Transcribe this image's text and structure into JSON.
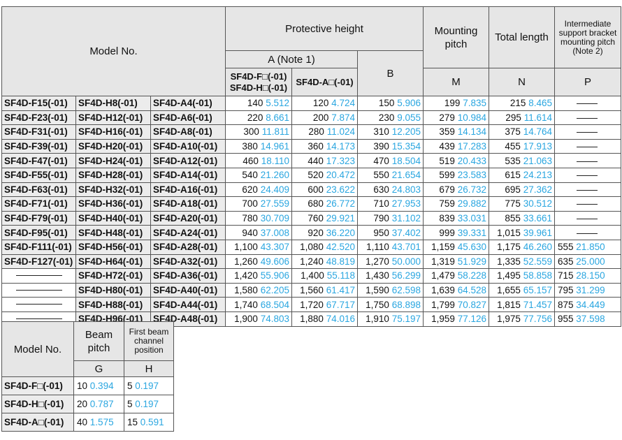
{
  "main_table": {
    "headers": {
      "model_no": "Model No.",
      "protective_height": "Protective height",
      "a_note": "A (Note 1)",
      "a_col1_line1": "SF4D-F□(-01)",
      "a_col1_line2": "SF4D-H□(-01)",
      "a_col2": "SF4D-A□(-01)",
      "b": "B",
      "mounting_pitch": "Mounting pitch",
      "m": "M",
      "total_length": "Total length",
      "n": "N",
      "intermediate": "Intermediate support bracket mounting pitch (Note 2)",
      "p": "P"
    },
    "rows": [
      {
        "f": "SF4D-F15(-01)",
        "h": "SF4D-H8(-01)",
        "a": "SF4D-A4(-01)",
        "A1": [
          "140",
          "5.512"
        ],
        "A2": [
          "120",
          "4.724"
        ],
        "B": [
          "150",
          "5.906"
        ],
        "M": [
          "199",
          "7.835"
        ],
        "N": [
          "215",
          "8.465"
        ],
        "P": null
      },
      {
        "f": "SF4D-F23(-01)",
        "h": "SF4D-H12(-01)",
        "a": "SF4D-A6(-01)",
        "A1": [
          "220",
          "8.661"
        ],
        "A2": [
          "200",
          "7.874"
        ],
        "B": [
          "230",
          "9.055"
        ],
        "M": [
          "279",
          "10.984"
        ],
        "N": [
          "295",
          "11.614"
        ],
        "P": null
      },
      {
        "f": "SF4D-F31(-01)",
        "h": "SF4D-H16(-01)",
        "a": "SF4D-A8(-01)",
        "A1": [
          "300",
          "11.811"
        ],
        "A2": [
          "280",
          "11.024"
        ],
        "B": [
          "310",
          "12.205"
        ],
        "M": [
          "359",
          "14.134"
        ],
        "N": [
          "375",
          "14.764"
        ],
        "P": null
      },
      {
        "f": "SF4D-F39(-01)",
        "h": "SF4D-H20(-01)",
        "a": "SF4D-A10(-01)",
        "A1": [
          "380",
          "14.961"
        ],
        "A2": [
          "360",
          "14.173"
        ],
        "B": [
          "390",
          "15.354"
        ],
        "M": [
          "439",
          "17.283"
        ],
        "N": [
          "455",
          "17.913"
        ],
        "P": null
      },
      {
        "f": "SF4D-F47(-01)",
        "h": "SF4D-H24(-01)",
        "a": "SF4D-A12(-01)",
        "A1": [
          "460",
          "18.110"
        ],
        "A2": [
          "440",
          "17.323"
        ],
        "B": [
          "470",
          "18.504"
        ],
        "M": [
          "519",
          "20.433"
        ],
        "N": [
          "535",
          "21.063"
        ],
        "P": null
      },
      {
        "f": "SF4D-F55(-01)",
        "h": "SF4D-H28(-01)",
        "a": "SF4D-A14(-01)",
        "A1": [
          "540",
          "21.260"
        ],
        "A2": [
          "520",
          "20.472"
        ],
        "B": [
          "550",
          "21.654"
        ],
        "M": [
          "599",
          "23.583"
        ],
        "N": [
          "615",
          "24.213"
        ],
        "P": null
      },
      {
        "f": "SF4D-F63(-01)",
        "h": "SF4D-H32(-01)",
        "a": "SF4D-A16(-01)",
        "A1": [
          "620",
          "24.409"
        ],
        "A2": [
          "600",
          "23.622"
        ],
        "B": [
          "630",
          "24.803"
        ],
        "M": [
          "679",
          "26.732"
        ],
        "N": [
          "695",
          "27.362"
        ],
        "P": null
      },
      {
        "f": "SF4D-F71(-01)",
        "h": "SF4D-H36(-01)",
        "a": "SF4D-A18(-01)",
        "A1": [
          "700",
          "27.559"
        ],
        "A2": [
          "680",
          "26.772"
        ],
        "B": [
          "710",
          "27.953"
        ],
        "M": [
          "759",
          "29.882"
        ],
        "N": [
          "775",
          "30.512"
        ],
        "P": null
      },
      {
        "f": "SF4D-F79(-01)",
        "h": "SF4D-H40(-01)",
        "a": "SF4D-A20(-01)",
        "A1": [
          "780",
          "30.709"
        ],
        "A2": [
          "760",
          "29.921"
        ],
        "B": [
          "790",
          "31.102"
        ],
        "M": [
          "839",
          "33.031"
        ],
        "N": [
          "855",
          "33.661"
        ],
        "P": null
      },
      {
        "f": "SF4D-F95(-01)",
        "h": "SF4D-H48(-01)",
        "a": "SF4D-A24(-01)",
        "A1": [
          "940",
          "37.008"
        ],
        "A2": [
          "920",
          "36.220"
        ],
        "B": [
          "950",
          "37.402"
        ],
        "M": [
          "999",
          "39.331"
        ],
        "N": [
          "1,015",
          "39.961"
        ],
        "P": null
      },
      {
        "f": "SF4D-F111(-01)",
        "h": "SF4D-H56(-01)",
        "a": "SF4D-A28(-01)",
        "A1": [
          "1,100",
          "43.307"
        ],
        "A2": [
          "1,080",
          "42.520"
        ],
        "B": [
          "1,110",
          "43.701"
        ],
        "M": [
          "1,159",
          "45.630"
        ],
        "N": [
          "1,175",
          "46.260"
        ],
        "P": [
          "555",
          "21.850"
        ]
      },
      {
        "f": "SF4D-F127(-01)",
        "h": "SF4D-H64(-01)",
        "a": "SF4D-A32(-01)",
        "A1": [
          "1,260",
          "49.606"
        ],
        "A2": [
          "1,240",
          "48.819"
        ],
        "B": [
          "1,270",
          "50.000"
        ],
        "M": [
          "1,319",
          "51.929"
        ],
        "N": [
          "1,335",
          "52.559"
        ],
        "P": [
          "635",
          "25.000"
        ]
      },
      {
        "f": null,
        "h": "SF4D-H72(-01)",
        "a": "SF4D-A36(-01)",
        "A1": [
          "1,420",
          "55.906"
        ],
        "A2": [
          "1,400",
          "55.118"
        ],
        "B": [
          "1,430",
          "56.299"
        ],
        "M": [
          "1,479",
          "58.228"
        ],
        "N": [
          "1,495",
          "58.858"
        ],
        "P": [
          "715",
          "28.150"
        ]
      },
      {
        "f": null,
        "h": "SF4D-H80(-01)",
        "a": "SF4D-A40(-01)",
        "A1": [
          "1,580",
          "62.205"
        ],
        "A2": [
          "1,560",
          "61.417"
        ],
        "B": [
          "1,590",
          "62.598"
        ],
        "M": [
          "1,639",
          "64.528"
        ],
        "N": [
          "1,655",
          "65.157"
        ],
        "P": [
          "795",
          "31.299"
        ]
      },
      {
        "f": null,
        "h": "SF4D-H88(-01)",
        "a": "SF4D-A44(-01)",
        "A1": [
          "1,740",
          "68.504"
        ],
        "A2": [
          "1,720",
          "67.717"
        ],
        "B": [
          "1,750",
          "68.898"
        ],
        "M": [
          "1,799",
          "70.827"
        ],
        "N": [
          "1,815",
          "71.457"
        ],
        "P": [
          "875",
          "34.449"
        ]
      },
      {
        "f": null,
        "h": "SF4D-H96(-01)",
        "a": "SF4D-A48(-01)",
        "A1": [
          "1,900",
          "74.803"
        ],
        "A2": [
          "1,880",
          "74.016"
        ],
        "B": [
          "1,910",
          "75.197"
        ],
        "M": [
          "1,959",
          "77.126"
        ],
        "N": [
          "1,975",
          "77.756"
        ],
        "P": [
          "955",
          "37.598"
        ]
      }
    ]
  },
  "sub_table": {
    "headers": {
      "model_no": "Model No.",
      "beam_pitch": "Beam pitch",
      "g": "G",
      "first_beam": "First beam channel position",
      "h": "H"
    },
    "rows": [
      {
        "model": "SF4D-F□(-01)",
        "G": [
          "10",
          "0.394"
        ],
        "H": [
          "5",
          "0.197"
        ]
      },
      {
        "model": "SF4D-H□(-01)",
        "G": [
          "20",
          "0.787"
        ],
        "H": [
          "5",
          "0.197"
        ]
      },
      {
        "model": "SF4D-A□(-01)",
        "G": [
          "40",
          "1.575"
        ],
        "H": [
          "15",
          "0.591"
        ]
      }
    ]
  },
  "colors": {
    "inch_value": "#2aa6e0",
    "header_bg": "#e6e6e6",
    "model_bg": "#ececec"
  }
}
